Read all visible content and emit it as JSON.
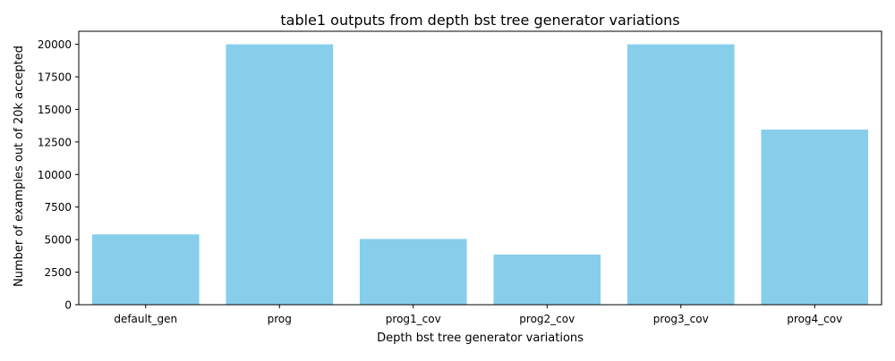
{
  "chart_data": {
    "type": "bar",
    "title": "table1 outputs from depth bst tree generator variations",
    "xlabel": "Depth bst tree generator variations",
    "ylabel": "Number of examples out of 20k accepted",
    "categories": [
      "default_gen",
      "prog",
      "prog1_cov",
      "prog2_cov",
      "prog3_cov",
      "prog4_cov"
    ],
    "values": [
      5400,
      20000,
      5050,
      3850,
      20000,
      13450
    ],
    "ylim": [
      0,
      21000
    ],
    "yticks": [
      0,
      2500,
      5000,
      7500,
      10000,
      12500,
      15000,
      17500,
      20000
    ],
    "grid": false,
    "legend": "none",
    "bar_color": "#87ceeb"
  }
}
